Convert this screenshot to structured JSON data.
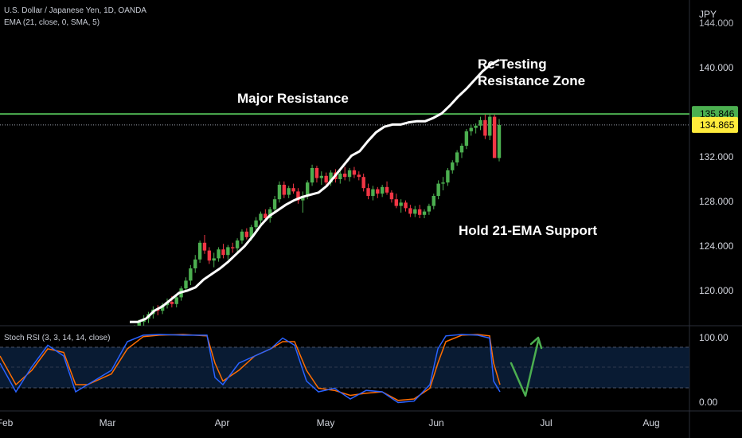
{
  "chart_data": {
    "type": "candlestick",
    "symbol_line": "U.S. Dollar / Japanese Yen, 1D, OANDA",
    "indicator_line": "EMA (21, close, 0, SMA, 5)",
    "currency": "JPY",
    "price_ticks": [
      "140.000",
      "132.000",
      "128.000",
      "124.000",
      "120.000"
    ],
    "price_scale_top_partial": "144.000",
    "price_tick_values": [
      140,
      132,
      128,
      124,
      120
    ],
    "ylim": [
      117,
      145
    ],
    "resistance": {
      "value": 135.846,
      "label": "135.846",
      "color": "#4caf50"
    },
    "last_price": {
      "value": 134.865,
      "label": "134.865",
      "color": "#ffeb3b"
    },
    "time_labels": [
      "Feb",
      "Mar",
      "Apr",
      "May",
      "Jun",
      "Jul",
      "Aug"
    ],
    "annotations": {
      "major_resistance": "Major Resistance",
      "retest_line1": "Re-Testing",
      "retest_line2": "Resistance Zone",
      "ema_support": "Hold 21-EMA Support"
    },
    "candles_ohlc": [
      [
        115.5,
        116.4,
        115.2,
        116.2
      ],
      [
        116.2,
        116.9,
        115.9,
        116.7
      ],
      [
        116.7,
        117.4,
        116.3,
        117.2
      ],
      [
        117.2,
        117.8,
        116.8,
        117.5
      ],
      [
        117.5,
        118.1,
        117.1,
        117.9
      ],
      [
        117.9,
        118.6,
        117.5,
        118.3
      ],
      [
        118.3,
        118.7,
        117.8,
        118.2
      ],
      [
        118.2,
        118.9,
        117.9,
        118.7
      ],
      [
        118.7,
        119.3,
        118.4,
        119.0
      ],
      [
        119.0,
        119.5,
        118.5,
        118.8
      ],
      [
        118.8,
        119.6,
        118.5,
        119.4
      ],
      [
        119.4,
        120.4,
        119.1,
        120.2
      ],
      [
        120.2,
        121.2,
        119.9,
        120.9
      ],
      [
        120.9,
        122.3,
        120.5,
        122.0
      ],
      [
        122.0,
        123.2,
        121.6,
        122.8
      ],
      [
        122.8,
        124.5,
        122.5,
        124.3
      ],
      [
        124.3,
        125.0,
        123.3,
        123.6
      ],
      [
        123.6,
        123.9,
        122.4,
        122.7
      ],
      [
        122.7,
        123.4,
        122.1,
        122.9
      ],
      [
        122.9,
        123.9,
        122.6,
        123.7
      ],
      [
        123.7,
        124.2,
        122.9,
        123.2
      ],
      [
        123.2,
        124.1,
        122.8,
        123.9
      ],
      [
        123.9,
        124.3,
        123.4,
        123.8
      ],
      [
        123.8,
        124.7,
        123.5,
        124.5
      ],
      [
        124.5,
        125.5,
        124.2,
        125.3
      ],
      [
        125.3,
        125.6,
        124.6,
        124.8
      ],
      [
        124.8,
        125.9,
        124.5,
        125.7
      ],
      [
        125.7,
        126.6,
        125.4,
        126.3
      ],
      [
        126.3,
        127.1,
        125.9,
        126.9
      ],
      [
        126.9,
        127.3,
        126.2,
        126.5
      ],
      [
        126.5,
        127.5,
        126.1,
        127.3
      ],
      [
        127.3,
        128.5,
        127.0,
        128.2
      ],
      [
        128.2,
        129.8,
        127.9,
        129.5
      ],
      [
        129.5,
        129.8,
        128.3,
        128.6
      ],
      [
        128.6,
        129.4,
        128.3,
        129.2
      ],
      [
        129.2,
        129.6,
        128.7,
        128.9
      ],
      [
        128.9,
        129.2,
        127.8,
        128.1
      ],
      [
        128.1,
        128.9,
        127.0,
        128.5
      ],
      [
        128.5,
        129.9,
        128.2,
        129.7
      ],
      [
        129.7,
        131.3,
        129.4,
        131.0
      ],
      [
        131.0,
        131.2,
        129.7,
        130.1
      ],
      [
        130.1,
        130.7,
        129.5,
        130.3
      ],
      [
        130.3,
        130.6,
        129.4,
        129.7
      ],
      [
        129.7,
        130.8,
        129.4,
        130.6
      ],
      [
        130.6,
        130.9,
        129.7,
        130.0
      ],
      [
        130.0,
        130.8,
        129.6,
        130.5
      ],
      [
        130.5,
        131.1,
        129.9,
        130.2
      ],
      [
        130.2,
        131.0,
        129.8,
        130.8
      ],
      [
        130.8,
        131.1,
        130.1,
        130.4
      ],
      [
        130.4,
        130.7,
        129.9,
        130.2
      ],
      [
        130.2,
        130.5,
        128.9,
        129.2
      ],
      [
        129.2,
        129.6,
        128.2,
        128.5
      ],
      [
        128.5,
        129.4,
        128.1,
        129.1
      ],
      [
        129.1,
        129.3,
        128.3,
        128.7
      ],
      [
        128.7,
        129.5,
        128.4,
        129.3
      ],
      [
        129.3,
        129.8,
        128.6,
        128.8
      ],
      [
        128.8,
        129.0,
        127.9,
        128.2
      ],
      [
        128.2,
        128.7,
        127.4,
        127.6
      ],
      [
        127.6,
        128.2,
        127.0,
        127.9
      ],
      [
        127.9,
        128.1,
        127.1,
        127.4
      ],
      [
        127.4,
        127.7,
        126.6,
        126.9
      ],
      [
        126.9,
        127.6,
        126.6,
        127.3
      ],
      [
        127.3,
        127.7,
        126.5,
        126.8
      ],
      [
        126.8,
        127.3,
        126.5,
        127.1
      ],
      [
        127.1,
        127.8,
        126.8,
        127.6
      ],
      [
        127.6,
        128.7,
        127.3,
        128.5
      ],
      [
        128.5,
        129.9,
        128.2,
        129.6
      ],
      [
        129.6,
        130.2,
        129.0,
        129.7
      ],
      [
        129.7,
        131.0,
        129.4,
        130.8
      ],
      [
        130.8,
        131.7,
        130.5,
        131.5
      ],
      [
        131.5,
        132.6,
        131.2,
        132.4
      ],
      [
        132.4,
        133.2,
        131.9,
        133.0
      ],
      [
        133.0,
        134.5,
        132.7,
        134.3
      ],
      [
        134.3,
        134.9,
        133.9,
        134.6
      ],
      [
        134.6,
        135.0,
        134.1,
        134.8
      ],
      [
        134.8,
        135.6,
        134.4,
        135.3
      ],
      [
        135.3,
        135.8,
        133.6,
        133.9
      ],
      [
        133.9,
        135.8,
        133.5,
        135.6
      ],
      [
        135.6,
        135.8,
        132.6,
        131.9
      ],
      [
        131.9,
        135.4,
        131.6,
        134.865
      ]
    ],
    "ema21": [
      [
        117.0,
        117.2
      ],
      [
        123.9,
        117.2
      ],
      [
        124.5,
        117.5
      ],
      [
        125.3,
        118.2
      ],
      [
        127.5,
        118.6
      ],
      [
        130.1,
        119.2
      ],
      [
        133.5,
        119.8
      ],
      [
        137.5,
        120.0
      ],
      [
        142.3,
        120.3
      ],
      [
        150.5,
        121.0
      ],
      [
        158.4,
        121.5
      ],
      [
        167.8,
        122.0
      ],
      [
        178.1,
        122.6
      ],
      [
        189.1,
        123.3
      ],
      [
        200.3,
        124.0
      ],
      [
        213.1,
        124.9
      ],
      [
        228.5,
        125.9
      ],
      [
        243.7,
        126.7
      ],
      [
        257.9,
        127.2
      ],
      [
        271.4,
        127.7
      ],
      [
        283.0,
        128.1
      ],
      [
        297.4,
        128.4
      ],
      [
        312.0,
        128.6
      ],
      [
        326.5,
        128.8
      ],
      [
        341.3,
        129.4
      ],
      [
        353.2,
        130.3
      ],
      [
        364.4,
        131.2
      ],
      [
        376.1,
        132.1
      ],
      [
        391.4,
        132.5
      ],
      [
        405.5,
        133.4
      ],
      [
        418.6,
        134.2
      ],
      [
        432.7,
        134.7
      ],
      [
        446.9,
        134.9
      ],
      [
        462.8,
        134.9
      ],
      [
        479.3,
        135.1
      ],
      [
        495.6,
        135.2
      ],
      [
        511.6,
        135.2
      ],
      [
        525.3,
        135.5
      ],
      [
        538.7,
        135.9
      ],
      [
        551.9,
        136.6
      ],
      [
        564.2,
        137.4
      ],
      [
        576.9,
        138.1
      ],
      [
        589.1,
        138.9
      ],
      [
        602.0,
        139.7
      ],
      [
        616.6,
        140.3
      ],
      [
        629.4,
        140.7
      ]
    ],
    "stoch_rsi": {
      "label": "Stoch RSI (3, 3, 14, 14, close)",
      "ticks": [
        "100.00",
        "0.00"
      ],
      "levels": [
        80,
        50,
        20
      ],
      "k": [
        [
          0,
          60
        ],
        [
          20,
          20
        ],
        [
          40,
          55
        ],
        [
          60,
          85
        ],
        [
          80,
          70
        ],
        [
          95,
          20
        ],
        [
          110,
          30
        ],
        [
          140,
          50
        ],
        [
          160,
          90
        ],
        [
          180,
          99
        ],
        [
          200,
          100
        ],
        [
          230,
          99
        ],
        [
          260,
          99
        ],
        [
          270,
          40
        ],
        [
          280,
          30
        ],
        [
          300,
          60
        ],
        [
          320,
          70
        ],
        [
          340,
          80
        ],
        [
          355,
          95
        ],
        [
          370,
          85
        ],
        [
          385,
          35
        ],
        [
          400,
          20
        ],
        [
          420,
          25
        ],
        [
          440,
          10
        ],
        [
          460,
          22
        ],
        [
          480,
          20
        ],
        [
          500,
          5
        ],
        [
          520,
          7
        ],
        [
          540,
          30
        ],
        [
          550,
          80
        ],
        [
          560,
          98
        ],
        [
          580,
          100
        ],
        [
          600,
          99
        ],
        [
          615,
          95
        ],
        [
          620,
          35
        ],
        [
          628,
          20
        ]
      ],
      "d": [
        [
          0,
          70
        ],
        [
          20,
          30
        ],
        [
          40,
          50
        ],
        [
          60,
          80
        ],
        [
          80,
          75
        ],
        [
          95,
          30
        ],
        [
          110,
          30
        ],
        [
          140,
          45
        ],
        [
          160,
          80
        ],
        [
          180,
          97
        ],
        [
          200,
          99
        ],
        [
          230,
          100
        ],
        [
          260,
          98
        ],
        [
          270,
          60
        ],
        [
          280,
          35
        ],
        [
          300,
          50
        ],
        [
          320,
          70
        ],
        [
          340,
          80
        ],
        [
          355,
          90
        ],
        [
          370,
          90
        ],
        [
          385,
          50
        ],
        [
          400,
          25
        ],
        [
          420,
          22
        ],
        [
          440,
          15
        ],
        [
          460,
          18
        ],
        [
          480,
          20
        ],
        [
          500,
          8
        ],
        [
          520,
          10
        ],
        [
          540,
          25
        ],
        [
          550,
          60
        ],
        [
          560,
          90
        ],
        [
          580,
          99
        ],
        [
          600,
          100
        ],
        [
          615,
          98
        ],
        [
          620,
          60
        ],
        [
          628,
          30
        ]
      ],
      "k_color": "#2962ff",
      "d_color": "#ff6d00"
    },
    "arrow_color": "#4caf50",
    "up_color": "#4caf50",
    "down_color": "#f23645",
    "ema_color": "#ffffff",
    "grid": false
  }
}
